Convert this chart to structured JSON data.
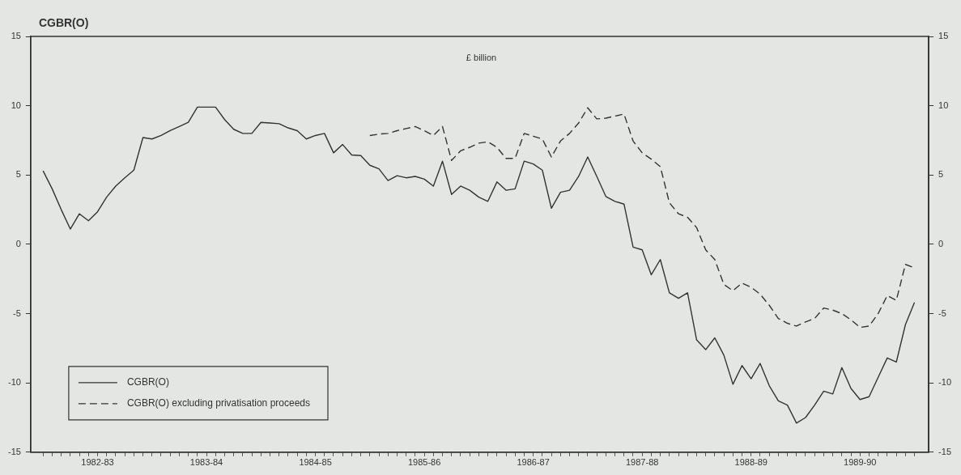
{
  "chart_data": {
    "type": "line",
    "title": "CGBR(O)",
    "annotations": [
      "£ billion"
    ],
    "x": [
      "1982-04",
      "1982-05",
      "1982-06",
      "1982-07",
      "1982-08",
      "1982-09",
      "1982-10",
      "1982-11",
      "1982-12",
      "1983-01",
      "1983-02",
      "1983-03",
      "1983-04",
      "1983-05",
      "1983-06",
      "1983-07",
      "1983-08",
      "1983-09",
      "1983-10",
      "1983-11",
      "1983-12",
      "1984-01",
      "1984-02",
      "1984-03",
      "1984-04",
      "1984-05",
      "1984-06",
      "1984-07",
      "1984-08",
      "1984-09",
      "1984-10",
      "1984-11",
      "1984-12",
      "1985-01",
      "1985-02",
      "1985-03",
      "1985-04",
      "1985-05",
      "1985-06",
      "1985-07",
      "1985-08",
      "1985-09",
      "1985-10",
      "1985-11",
      "1985-12",
      "1986-01",
      "1986-02",
      "1986-03",
      "1986-04",
      "1986-05",
      "1986-06",
      "1986-07",
      "1986-08",
      "1986-09",
      "1986-10",
      "1986-11",
      "1986-12",
      "1987-01",
      "1987-02",
      "1987-03",
      "1987-04",
      "1987-05",
      "1987-06",
      "1987-07",
      "1987-08",
      "1987-09",
      "1987-10",
      "1987-11",
      "1987-12",
      "1988-01",
      "1988-02",
      "1988-03",
      "1988-04",
      "1988-05",
      "1988-06",
      "1988-07",
      "1988-08",
      "1988-09",
      "1988-10",
      "1988-11",
      "1988-12",
      "1989-01",
      "1989-02",
      "1989-03",
      "1989-04",
      "1989-05",
      "1989-06",
      "1989-07",
      "1989-08",
      "1989-09",
      "1989-10",
      "1989-11",
      "1989-12",
      "1990-01",
      "1990-02",
      "1990-03",
      "1990-04"
    ],
    "series": [
      {
        "name": "CGBR(O)",
        "color": "#333333",
        "line_style": "solid",
        "values": [
          5.3,
          4.0,
          2.5,
          1.1,
          2.2,
          1.7,
          2.35,
          3.4,
          4.2,
          4.8,
          5.35,
          7.7,
          7.6,
          7.85,
          8.2,
          8.5,
          8.8,
          9.9,
          9.9,
          9.9,
          9.0,
          8.3,
          8.0,
          8.0,
          8.8,
          8.75,
          8.7,
          8.4,
          8.2,
          7.6,
          7.85,
          8.0,
          6.6,
          7.2,
          6.45,
          6.4,
          5.7,
          5.45,
          4.6,
          4.95,
          4.8,
          4.9,
          4.7,
          4.2,
          6.0,
          3.6,
          4.2,
          3.9,
          3.4,
          3.1,
          4.5,
          3.9,
          4.0,
          6.0,
          5.8,
          5.35,
          2.6,
          3.75,
          3.9,
          4.9,
          6.3,
          4.9,
          3.45,
          3.1,
          2.9,
          -0.2,
          -0.4,
          -2.2,
          -1.1,
          -3.5,
          -3.9,
          -3.5,
          -6.9,
          -7.6,
          -6.75,
          -8.0,
          -10.1,
          -8.75,
          -9.7,
          -8.6,
          -10.2,
          -11.3,
          -11.6,
          -12.9,
          -12.5,
          -11.6,
          -10.6,
          -10.8,
          -8.9,
          -10.4,
          -11.2,
          -11.0,
          -9.6,
          -8.2,
          -8.5,
          -5.8,
          -4.2
        ]
      },
      {
        "name": "CGBR(O) excluding privatisation proceeds",
        "color": "#333333",
        "line_style": "dashed",
        "values": [
          null,
          null,
          null,
          null,
          null,
          null,
          null,
          null,
          null,
          null,
          null,
          null,
          null,
          null,
          null,
          null,
          null,
          null,
          null,
          null,
          null,
          null,
          null,
          null,
          null,
          null,
          null,
          null,
          null,
          null,
          null,
          null,
          null,
          null,
          null,
          null,
          7.85,
          7.95,
          8.0,
          8.2,
          8.35,
          8.5,
          8.2,
          7.85,
          8.5,
          6.05,
          6.75,
          7.0,
          7.3,
          7.4,
          7.0,
          6.2,
          6.2,
          8.0,
          7.8,
          7.6,
          6.3,
          7.45,
          8.0,
          8.75,
          9.85,
          9.05,
          9.1,
          9.25,
          9.4,
          7.45,
          6.6,
          6.15,
          5.6,
          3.0,
          2.2,
          1.95,
          1.2,
          -0.4,
          -1.1,
          -2.9,
          -3.35,
          -2.8,
          -3.1,
          -3.6,
          -4.4,
          -5.35,
          -5.7,
          -5.9,
          -5.6,
          -5.35,
          -4.6,
          -4.75,
          -5.0,
          -5.45,
          -6.0,
          -5.9,
          -5.0,
          -3.7,
          -4.05,
          -1.45,
          -1.7
        ]
      }
    ],
    "xlim": [
      "1982-02-20",
      "1990-05-18"
    ],
    "xticks": [
      {
        "value": "1982-04",
        "label": null
      },
      {
        "value": "1982-05",
        "label": null
      },
      {
        "value": "1982-06",
        "label": null
      },
      {
        "value": "1982-07",
        "label": null
      },
      {
        "value": "1982-08",
        "label": null
      },
      {
        "value": "1982-09",
        "label": null
      },
      {
        "value": "1982-10",
        "label": "1982-83"
      },
      {
        "value": "1982-11",
        "label": null
      },
      {
        "value": "1982-12",
        "label": null
      },
      {
        "value": "1983-01",
        "label": null
      },
      {
        "value": "1983-02",
        "label": null
      },
      {
        "value": "1983-03",
        "label": null
      },
      {
        "value": "1983-04",
        "label": null
      },
      {
        "value": "1983-05",
        "label": null
      },
      {
        "value": "1983-06",
        "label": null
      },
      {
        "value": "1983-07",
        "label": null
      },
      {
        "value": "1983-08",
        "label": null
      },
      {
        "value": "1983-09",
        "label": null
      },
      {
        "value": "1983-10",
        "label": "1983-84"
      },
      {
        "value": "1983-11",
        "label": null
      },
      {
        "value": "1983-12",
        "label": null
      },
      {
        "value": "1984-01",
        "label": null
      },
      {
        "value": "1984-02",
        "label": null
      },
      {
        "value": "1984-03",
        "label": null
      },
      {
        "value": "1984-04",
        "label": null
      },
      {
        "value": "1984-05",
        "label": null
      },
      {
        "value": "1984-06",
        "label": null
      },
      {
        "value": "1984-07",
        "label": null
      },
      {
        "value": "1984-08",
        "label": null
      },
      {
        "value": "1984-09",
        "label": null
      },
      {
        "value": "1984-10",
        "label": "1984-85"
      },
      {
        "value": "1984-11",
        "label": null
      },
      {
        "value": "1984-12",
        "label": null
      },
      {
        "value": "1985-01",
        "label": null
      },
      {
        "value": "1985-02",
        "label": null
      },
      {
        "value": "1985-03",
        "label": null
      },
      {
        "value": "1985-04",
        "label": null
      },
      {
        "value": "1985-05",
        "label": null
      },
      {
        "value": "1985-06",
        "label": null
      },
      {
        "value": "1985-07",
        "label": null
      },
      {
        "value": "1985-08",
        "label": null
      },
      {
        "value": "1985-09",
        "label": null
      },
      {
        "value": "1985-10",
        "label": "1985-86"
      },
      {
        "value": "1985-11",
        "label": null
      },
      {
        "value": "1985-12",
        "label": null
      },
      {
        "value": "1986-01",
        "label": null
      },
      {
        "value": "1986-02",
        "label": null
      },
      {
        "value": "1986-03",
        "label": null
      },
      {
        "value": "1986-04",
        "label": null
      },
      {
        "value": "1986-05",
        "label": null
      },
      {
        "value": "1986-06",
        "label": null
      },
      {
        "value": "1986-07",
        "label": null
      },
      {
        "value": "1986-08",
        "label": null
      },
      {
        "value": "1986-09",
        "label": null
      },
      {
        "value": "1986-10",
        "label": "1986-87"
      },
      {
        "value": "1986-11",
        "label": null
      },
      {
        "value": "1986-12",
        "label": null
      },
      {
        "value": "1987-01",
        "label": null
      },
      {
        "value": "1987-02",
        "label": null
      },
      {
        "value": "1987-03",
        "label": null
      },
      {
        "value": "1987-04",
        "label": null
      },
      {
        "value": "1987-05",
        "label": null
      },
      {
        "value": "1987-06",
        "label": null
      },
      {
        "value": "1987-07",
        "label": null
      },
      {
        "value": "1987-08",
        "label": null
      },
      {
        "value": "1987-09",
        "label": null
      },
      {
        "value": "1987-10",
        "label": "1987-88"
      },
      {
        "value": "1987-11",
        "label": null
      },
      {
        "value": "1987-12",
        "label": null
      },
      {
        "value": "1988-01",
        "label": null
      },
      {
        "value": "1988-02",
        "label": null
      },
      {
        "value": "1988-03",
        "label": null
      },
      {
        "value": "1988-04",
        "label": null
      },
      {
        "value": "1988-05",
        "label": null
      },
      {
        "value": "1988-06",
        "label": null
      },
      {
        "value": "1988-07",
        "label": null
      },
      {
        "value": "1988-08",
        "label": null
      },
      {
        "value": "1988-09",
        "label": null
      },
      {
        "value": "1988-10",
        "label": "1988-89"
      },
      {
        "value": "1988-11",
        "label": null
      },
      {
        "value": "1988-12",
        "label": null
      },
      {
        "value": "1989-01",
        "label": null
      },
      {
        "value": "1989-02",
        "label": null
      },
      {
        "value": "1989-03",
        "label": null
      },
      {
        "value": "1989-04",
        "label": null
      },
      {
        "value": "1989-05",
        "label": null
      },
      {
        "value": "1989-06",
        "label": null
      },
      {
        "value": "1989-07",
        "label": null
      },
      {
        "value": "1989-08",
        "label": null
      },
      {
        "value": "1989-09",
        "label": null
      },
      {
        "value": "1989-10",
        "label": "1989-90"
      },
      {
        "value": "1989-11",
        "label": null
      },
      {
        "value": "1989-12",
        "label": null
      },
      {
        "value": "1990-01",
        "label": null
      },
      {
        "value": "1990-02",
        "label": null
      },
      {
        "value": "1990-03",
        "label": null
      },
      {
        "value": "1990-04",
        "label": null
      }
    ],
    "ylim": [
      -15,
      15
    ],
    "yticks": [
      -15,
      -10,
      -5,
      0,
      5,
      10,
      15
    ],
    "y2lim": [
      -15,
      15
    ],
    "y2ticks": [
      -15,
      -10,
      -5,
      0,
      5,
      10,
      15
    ],
    "grid": false,
    "legend": "bottom left",
    "marker": "none"
  }
}
